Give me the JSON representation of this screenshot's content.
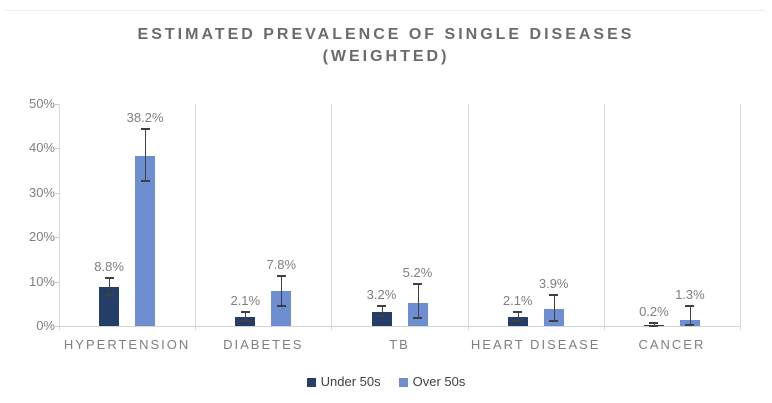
{
  "title": {
    "line1": "ESTIMATED PREVALENCE OF SINGLE DISEASES",
    "line2": "(WEIGHTED)"
  },
  "chart_data": {
    "type": "bar",
    "title": "ESTIMATED PREVALENCE OF SINGLE DISEASES (WEIGHTED)",
    "categories": [
      "HYPERTENSION",
      "DIABETES",
      "TB",
      "HEART DISEASE",
      "CANCER"
    ],
    "series": [
      {
        "name": "Under 50s",
        "color": "#243e68",
        "values": [
          8.8,
          2.1,
          3.2,
          2.1,
          0.2
        ],
        "data_labels": [
          "8.8%",
          "2.1%",
          "3.2%",
          "2.1%",
          "0.2%"
        ],
        "error_low": [
          6.9,
          1.2,
          2.2,
          1.2,
          0.0
        ],
        "error_high": [
          10.7,
          3.2,
          4.4,
          3.2,
          0.6
        ]
      },
      {
        "name": "Over 50s",
        "color": "#6d8fd1",
        "values": [
          38.2,
          7.8,
          5.2,
          3.9,
          1.3
        ],
        "data_labels": [
          "38.2%",
          "7.8%",
          "5.2%",
          "3.9%",
          "1.3%"
        ],
        "error_low": [
          32.6,
          4.6,
          1.9,
          1.2,
          0.3
        ],
        "error_high": [
          44.4,
          11.2,
          9.5,
          7.0,
          4.4
        ]
      }
    ],
    "y_axis": {
      "ticks": [
        "0%",
        "10%",
        "20%",
        "30%",
        "40%",
        "50%"
      ],
      "min": 0,
      "max": 50,
      "tick_step": 10
    },
    "legend": {
      "position": "bottom",
      "entries": [
        "Under 50s",
        "Over 50s"
      ]
    },
    "style": {
      "error_bar_color": "#404040",
      "axis_color": "#d9d9d9",
      "label_color": "#7f7f7f",
      "title_color": "#6b6b6b",
      "gridlines": "vertical-category-separators"
    }
  }
}
